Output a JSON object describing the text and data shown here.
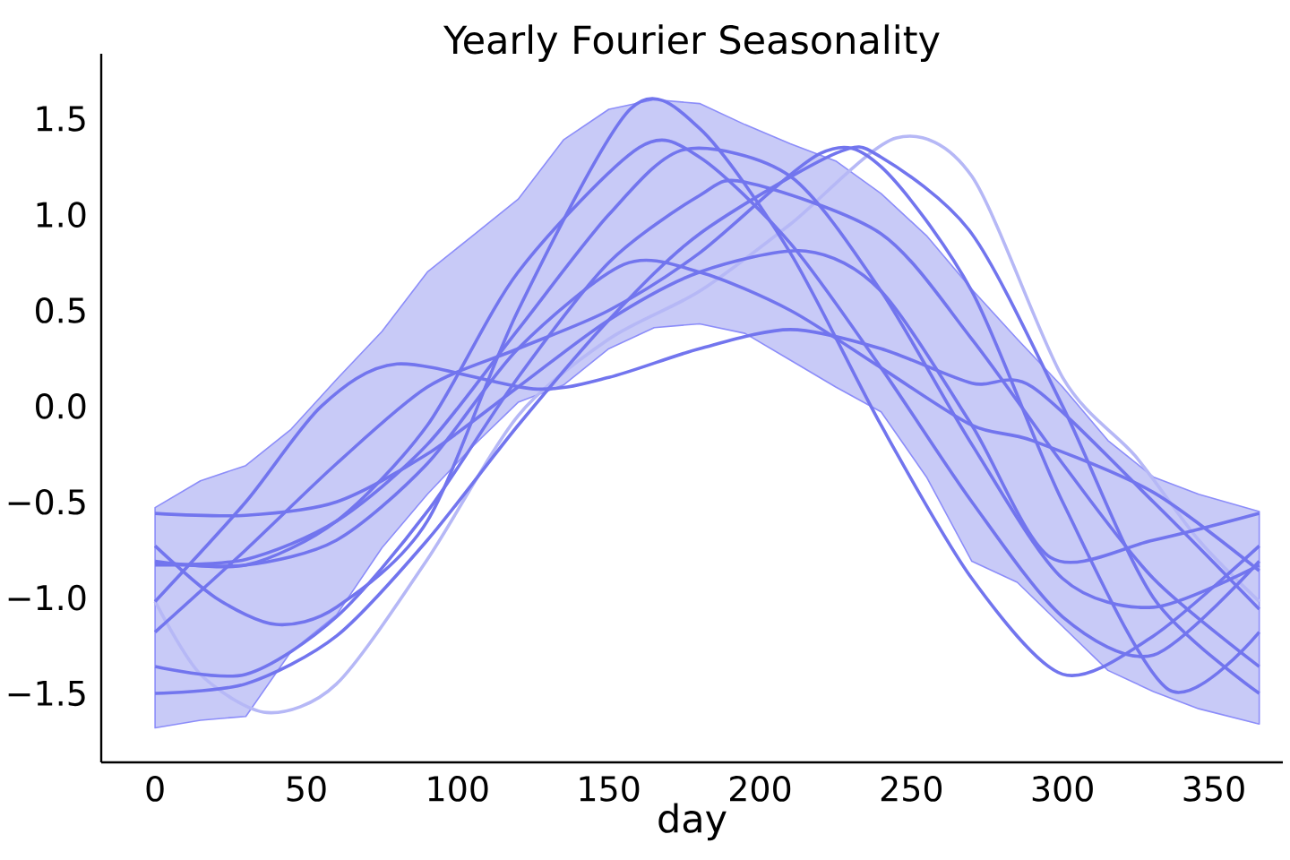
{
  "chart_data": {
    "type": "line",
    "title": "Yearly Fourier Seasonality",
    "xlabel": "day",
    "xlim": [
      -17.8,
      372.8
    ],
    "ylim": [
      -1.86,
      1.84
    ],
    "xticks": [
      0,
      50,
      100,
      150,
      200,
      250,
      300,
      350
    ],
    "yticks": [
      {
        "value": -1.5,
        "label": "−1.5"
      },
      {
        "value": -1.0,
        "label": "−1.0"
      },
      {
        "value": -0.5,
        "label": "−0.5"
      },
      {
        "value": 0.0,
        "label": "0.0"
      },
      {
        "value": 0.5,
        "label": "0.5"
      },
      {
        "value": 1.0,
        "label": "1.0"
      },
      {
        "value": 1.5,
        "label": "1.5"
      }
    ],
    "series": [
      {
        "color": "#c8caf7",
        "x": [
          0,
          15,
          30,
          45,
          60,
          75,
          90,
          105,
          120,
          135,
          150,
          165,
          180,
          195,
          210,
          225,
          240,
          255,
          270,
          285,
          300,
          315,
          330,
          345,
          365
        ],
        "values": [
          null,
          null,
          null,
          null,
          null,
          null,
          null,
          null,
          null,
          null,
          null,
          null,
          null,
          null,
          null,
          null,
          null,
          null,
          null,
          null,
          null,
          null,
          null,
          null,
          null
        ],
        "upper": [
          -0.53,
          -0.39,
          -0.31,
          -0.12,
          0.14,
          0.39,
          0.7,
          0.89,
          1.08,
          1.39,
          1.55,
          1.6,
          1.58,
          1.47,
          1.37,
          1.28,
          1.11,
          0.89,
          0.61,
          0.35,
          0.1,
          -0.18,
          -0.37,
          -0.46,
          -0.55
        ],
        "lower": [
          -1.68,
          -1.64,
          -1.62,
          -1.28,
          -1.09,
          -0.74,
          -0.46,
          -0.21,
          0.02,
          0.11,
          0.3,
          0.41,
          0.43,
          0.38,
          0.24,
          0.1,
          -0.03,
          -0.37,
          -0.81,
          -0.92,
          -1.15,
          -1.38,
          -1.49,
          -1.58,
          -1.66
        ]
      },
      {
        "color": "#b6b8f6",
        "x": [
          0,
          15,
          37,
          60,
          90,
          120,
          150,
          180,
          210,
          245,
          270,
          300,
          324,
          345,
          365
        ],
        "values": [
          -1.02,
          -1.4,
          -1.6,
          -1.45,
          -0.8,
          -0.05,
          0.35,
          0.6,
          0.95,
          1.4,
          1.2,
          0.15,
          -0.26,
          -0.7,
          -1.02
        ]
      },
      {
        "color": "#7275ee",
        "x": [
          0,
          30,
          60,
          90,
          120,
          150,
          180,
          215,
          240,
          270,
          296,
          330,
          365
        ],
        "values": [
          -0.56,
          -0.57,
          -0.5,
          -0.25,
          0.1,
          0.45,
          0.7,
          0.81,
          0.6,
          -0.1,
          -0.79,
          -0.7,
          -0.56
        ]
      },
      {
        "color": "#7275ee",
        "x": [
          0,
          20,
          40,
          60,
          90,
          120,
          157,
          180,
          210,
          240,
          270,
          300,
          330,
          365
        ],
        "values": [
          -0.73,
          -1.0,
          -1.14,
          -1.05,
          -0.6,
          0.5,
          1.55,
          1.45,
          0.8,
          -0.1,
          -0.9,
          -1.4,
          -1.2,
          -0.73
        ]
      },
      {
        "color": "#7275ee",
        "x": [
          0,
          30,
          60,
          90,
          120,
          160,
          180,
          210,
          240,
          270,
          300,
          330,
          365
        ],
        "values": [
          -0.81,
          -0.83,
          -0.6,
          -0.1,
          0.7,
          1.35,
          1.3,
          0.85,
          0.2,
          -0.5,
          -1.1,
          -1.3,
          -0.81
        ]
      },
      {
        "color": "#7275ee",
        "x": [
          0,
          30,
          60,
          90,
          120,
          150,
          175,
          210,
          240,
          270,
          300,
          330,
          365
        ],
        "values": [
          -0.83,
          -0.8,
          -0.6,
          -0.2,
          0.4,
          1.0,
          1.34,
          1.2,
          0.6,
          -0.2,
          -0.9,
          -1.05,
          -0.83
        ]
      },
      {
        "color": "#7275ee",
        "x": [
          0,
          30,
          60,
          90,
          120,
          150,
          180,
          195,
          240,
          270,
          300,
          330,
          365
        ],
        "values": [
          -1.36,
          -1.4,
          -1.1,
          -0.55,
          0.15,
          0.75,
          1.1,
          1.17,
          0.9,
          0.35,
          -0.3,
          -0.9,
          -1.36
        ]
      },
      {
        "color": "#7275ee",
        "x": [
          0,
          30,
          60,
          90,
          120,
          150,
          180,
          225,
          240,
          270,
          300,
          330,
          365
        ],
        "values": [
          -1.5,
          -1.45,
          -1.2,
          -0.7,
          -0.1,
          0.45,
          0.9,
          1.32,
          1.3,
          0.9,
          0.0,
          -1.0,
          -1.5
        ]
      },
      {
        "color": "#7275ee",
        "x": [
          0,
          30,
          60,
          90,
          120,
          150,
          180,
          220,
          240,
          270,
          300,
          335,
          365
        ],
        "values": [
          -1.18,
          -0.75,
          -0.3,
          0.1,
          0.3,
          0.5,
          0.8,
          1.32,
          1.25,
          0.6,
          -0.5,
          -1.48,
          -1.18
        ]
      },
      {
        "color": "#7275ee",
        "x": [
          0,
          30,
          55,
          80,
          125,
          150,
          180,
          210,
          240,
          270,
          290,
          330,
          365
        ],
        "values": [
          -1.02,
          -0.5,
          0.0,
          0.22,
          0.09,
          0.15,
          0.3,
          0.4,
          0.3,
          0.12,
          0.1,
          -0.5,
          -1.06
        ]
      },
      {
        "color": "#7275ee",
        "x": [
          0,
          30,
          60,
          90,
          120,
          155,
          180,
          210,
          240,
          270,
          290,
          330,
          365
        ],
        "values": [
          -0.82,
          -0.83,
          -0.7,
          -0.3,
          0.3,
          0.74,
          0.7,
          0.5,
          0.2,
          -0.1,
          -0.18,
          -0.45,
          -0.86
        ]
      }
    ]
  }
}
